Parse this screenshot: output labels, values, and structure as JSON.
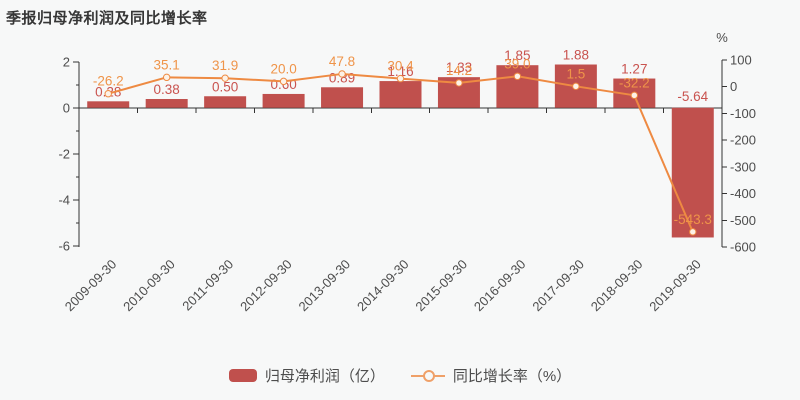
{
  "title": "季报归母净利润及同比增长率",
  "legend": {
    "bar_label": "归母净利润（亿）",
    "line_label": "同比增长率（%）"
  },
  "colors": {
    "background": "#f7f8f8",
    "bar": "#c0504d",
    "bar_value_label": "#c9534f",
    "line": "#ee8a42",
    "line_value_label": "#ef9449",
    "marker_fill": "#fdf2e7",
    "axis": "#333333",
    "tick_label": "#4d4d4d"
  },
  "chart_data": {
    "type": "bar+line combo",
    "title": "季报归母净利润及同比增长率",
    "categories": [
      "2009-09-30",
      "2010-09-30",
      "2011-09-30",
      "2012-09-30",
      "2013-09-30",
      "2014-09-30",
      "2015-09-30",
      "2016-09-30",
      "2017-09-30",
      "2018-09-30",
      "2019-09-30"
    ],
    "series": [
      {
        "name": "归母净利润（亿）",
        "type": "bar",
        "axis": "left",
        "values": [
          0.28,
          0.38,
          0.5,
          0.6,
          0.89,
          1.16,
          1.33,
          1.85,
          1.88,
          1.27,
          -5.64
        ]
      },
      {
        "name": "同比增长率（%）",
        "type": "line",
        "axis": "right",
        "values": [
          -26.2,
          35.1,
          31.9,
          20.0,
          47.8,
          30.4,
          14.2,
          39.0,
          1.5,
          -32.2,
          -543.3
        ]
      }
    ],
    "bar_labels": [
      "0.28",
      "0.38",
      "0.50",
      "0.60",
      "0.89",
      "1.16",
      "1.33",
      "1.85",
      "1.88",
      "1.27",
      "-5.64"
    ],
    "line_labels": [
      "-26.2",
      "35.1",
      "31.9",
      "20.0",
      "47.8",
      "30.4",
      "14.2",
      "39.0",
      "1.5",
      "-32.2",
      "-543.3"
    ],
    "left_axis": {
      "ticks": [
        2,
        0,
        -2,
        -4,
        -6
      ],
      "minor_ticks": [
        1,
        -1,
        -3,
        -5
      ],
      "min": -6,
      "max": 2
    },
    "right_axis": {
      "unit": "%",
      "ticks": [
        100,
        0,
        -100,
        -200,
        -300,
        -400,
        -500,
        -600
      ],
      "min": -600,
      "max": 100
    },
    "legend_position": "bottom",
    "grid": false
  }
}
